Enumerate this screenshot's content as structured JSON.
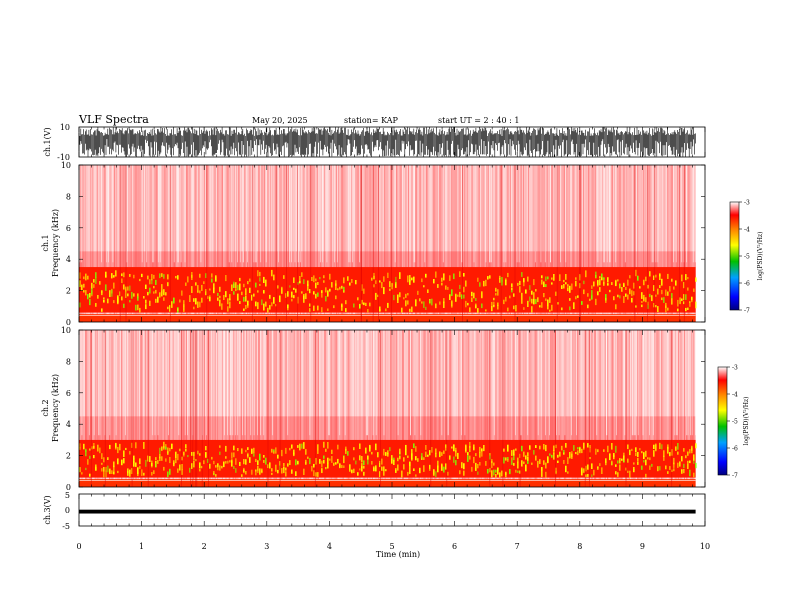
{
  "header": {
    "title": "VLF Spectra",
    "date": "May 20, 2025",
    "station": "station= KAP",
    "start": "start  UT =  2 : 40 : 1"
  },
  "chart_data": [
    {
      "type": "line",
      "panel": "ch1-waveform",
      "ylabel": "ch.1(V)",
      "ylim": [
        -10,
        10
      ],
      "y_ticks": [
        "10",
        "-10"
      ],
      "xlim": [
        0,
        9.85
      ],
      "description_values": {
        "amplitude_range": [
          -10,
          10
        ],
        "saturated": true
      }
    },
    {
      "type": "heatmap",
      "panel": "ch1-spectrogram",
      "ylabel": "ch.1\nFrequency (kHz)",
      "ylim": [
        0,
        10
      ],
      "y_ticks": [
        "0",
        "2",
        "4",
        "6",
        "8",
        "10"
      ],
      "xlim": [
        0,
        9.85
      ],
      "intense_band_khz": [
        0.6,
        3.5
      ],
      "colorbar": {
        "label": "log(PSD)(V²/Hz)",
        "range": [
          -7,
          -3
        ],
        "ticks": [
          "-3",
          "-4",
          "-5",
          "-6",
          "-7"
        ]
      }
    },
    {
      "type": "heatmap",
      "panel": "ch2-spectrogram",
      "ylabel": "ch.2\nFrequency (kHz)",
      "ylim": [
        0,
        10
      ],
      "y_ticks": [
        "0",
        "2",
        "4",
        "6",
        "8",
        "10"
      ],
      "xlim": [
        0,
        9.85
      ],
      "intense_band_khz": [
        0.6,
        3.0
      ],
      "colorbar": {
        "label": "log(PSD)(V²/Hz)",
        "range": [
          -7,
          -3
        ],
        "ticks": [
          "-3",
          "-4",
          "-5",
          "-6",
          "-7"
        ]
      }
    },
    {
      "type": "line",
      "panel": "ch3-waveform",
      "ylabel": "ch.3(V)",
      "ylim": [
        -5,
        5
      ],
      "y_ticks": [
        "5",
        "0",
        "-5"
      ],
      "xlim": [
        0,
        9.85
      ],
      "description_values": {
        "level": -0.5,
        "amplitude": 0.6
      }
    }
  ],
  "x_axis": {
    "label": "Time (min)",
    "ticks": [
      "0",
      "1",
      "2",
      "3",
      "4",
      "5",
      "6",
      "7",
      "8",
      "9",
      "10"
    ],
    "range": [
      0,
      10
    ]
  },
  "colors": {
    "spectrogram_low": "#ffffff",
    "spectrogram_mid": "#ff0000",
    "spectrogram_high": "#ffff00"
  }
}
